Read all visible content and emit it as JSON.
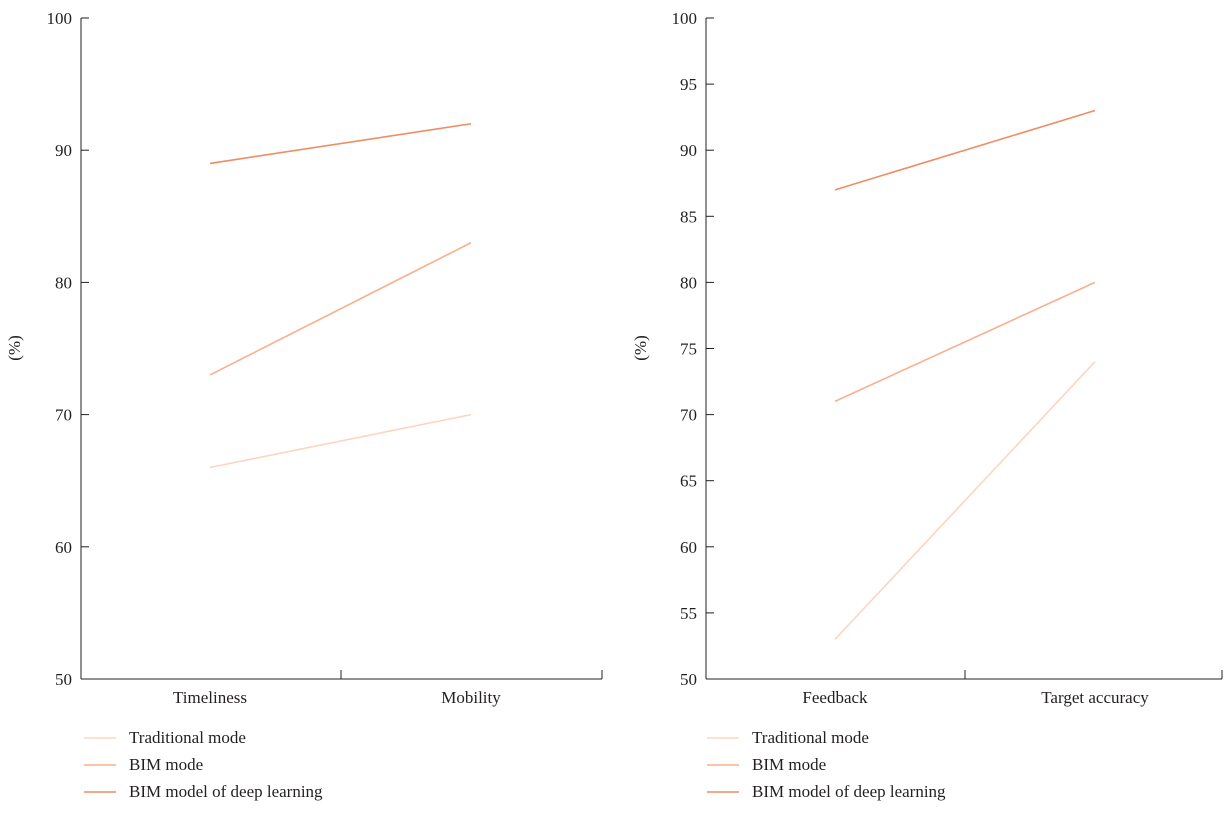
{
  "colors": {
    "Traditional mode": "#fcd5c0",
    "BIM mode": "#f8b08c",
    "BIM model of deep learning": "#f08c62",
    "axis": "#231f20"
  },
  "chart_data": [
    {
      "type": "line",
      "categories": [
        "Timeliness",
        "Mobility"
      ],
      "ylabel": "(%)",
      "ylim": [
        50,
        100
      ],
      "yticks": [
        50,
        60,
        70,
        80,
        90,
        100
      ],
      "series": [
        {
          "name": "Traditional mode",
          "values": [
            66,
            70
          ]
        },
        {
          "name": "BIM mode",
          "values": [
            73,
            83
          ]
        },
        {
          "name": "BIM model of deep learning",
          "values": [
            89,
            92
          ]
        }
      ],
      "legend_position": "bottom-left"
    },
    {
      "type": "line",
      "categories": [
        "Feedback",
        "Target accuracy"
      ],
      "ylabel": "(%)",
      "ylim": [
        50,
        100
      ],
      "yticks": [
        50,
        55,
        60,
        65,
        70,
        75,
        80,
        85,
        90,
        95,
        100
      ],
      "series": [
        {
          "name": "Traditional mode",
          "values": [
            53,
            74
          ]
        },
        {
          "name": "BIM mode",
          "values": [
            71,
            80
          ]
        },
        {
          "name": "BIM model of deep learning",
          "values": [
            87,
            93
          ]
        }
      ],
      "legend_position": "bottom-left"
    }
  ]
}
